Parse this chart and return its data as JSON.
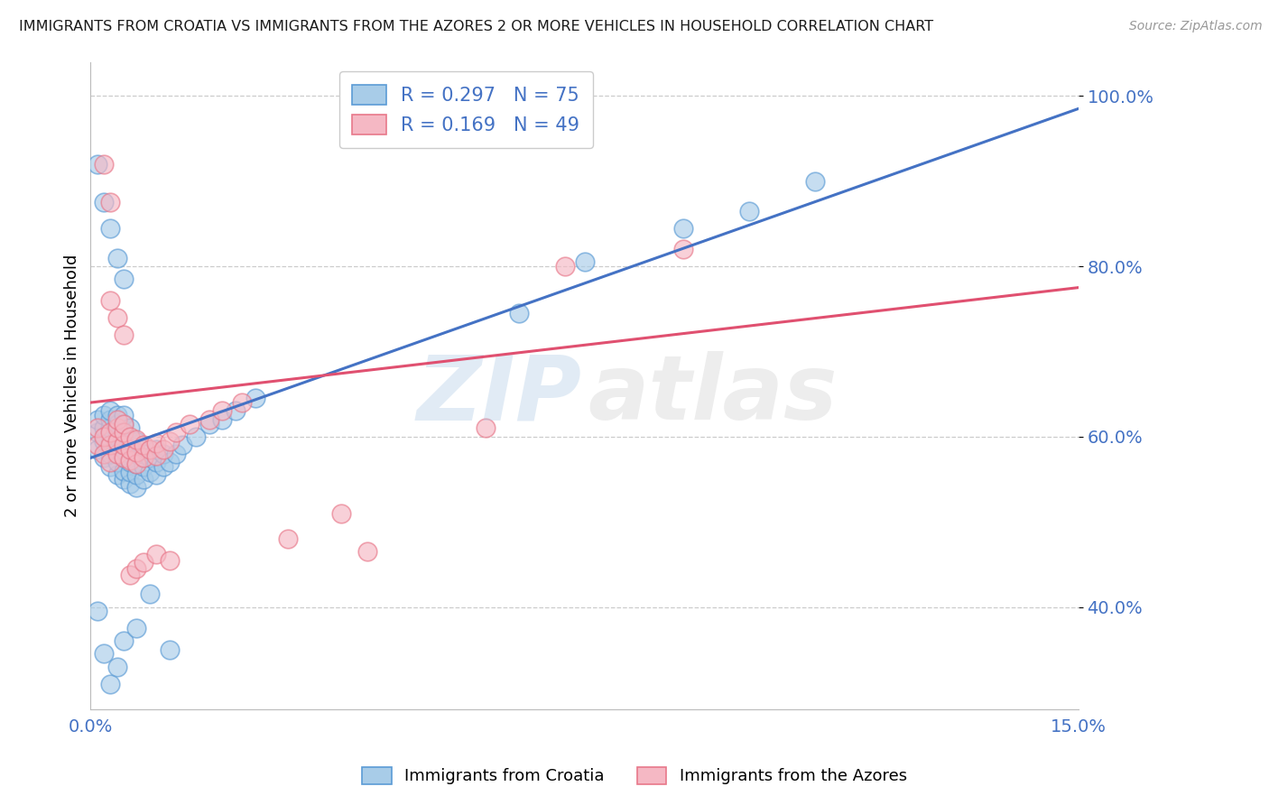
{
  "title": "IMMIGRANTS FROM CROATIA VS IMMIGRANTS FROM THE AZORES 2 OR MORE VEHICLES IN HOUSEHOLD CORRELATION CHART",
  "source": "Source: ZipAtlas.com",
  "ylabel": "2 or more Vehicles in Household",
  "xmin": 0.0,
  "xmax": 0.15,
  "ymin": 0.28,
  "ymax": 1.04,
  "yticks": [
    0.4,
    0.6,
    0.8,
    1.0
  ],
  "ytick_labels": [
    "40.0%",
    "60.0%",
    "80.0%",
    "100.0%"
  ],
  "xtick_labels": [
    "0.0%",
    "",
    "",
    "",
    "",
    "",
    "",
    "",
    "",
    "15.0%"
  ],
  "croatia_R": 0.297,
  "croatia_N": 75,
  "azores_R": 0.169,
  "azores_N": 49,
  "croatia_color": "#a8cce8",
  "azores_color": "#f5b8c4",
  "croatia_edge_color": "#5b9bd5",
  "azores_edge_color": "#e8788a",
  "croatia_line_color": "#4472c4",
  "azores_line_color": "#e05070",
  "legend_label_croatia": "Immigrants from Croatia",
  "legend_label_azores": "Immigrants from the Azores",
  "title_color": "#1a1a1a",
  "tick_color": "#4472c4",
  "grid_color": "#cccccc",
  "figwidth": 14.06,
  "figheight": 8.92,
  "croatia_trend_x0": 0.0,
  "croatia_trend_y0": 0.575,
  "croatia_trend_x1": 0.15,
  "croatia_trend_y1": 0.985,
  "azores_trend_x0": 0.0,
  "azores_trend_y0": 0.64,
  "azores_trend_x1": 0.15,
  "azores_trend_y1": 0.775,
  "croatia_x": [
    0.001,
    0.001,
    0.001,
    0.002,
    0.002,
    0.002,
    0.002,
    0.003,
    0.003,
    0.003,
    0.003,
    0.003,
    0.003,
    0.004,
    0.004,
    0.004,
    0.004,
    0.004,
    0.004,
    0.005,
    0.005,
    0.005,
    0.005,
    0.005,
    0.005,
    0.005,
    0.006,
    0.006,
    0.006,
    0.006,
    0.006,
    0.006,
    0.007,
    0.007,
    0.007,
    0.007,
    0.007,
    0.008,
    0.008,
    0.008,
    0.009,
    0.009,
    0.01,
    0.01,
    0.01,
    0.011,
    0.011,
    0.012,
    0.013,
    0.014,
    0.016,
    0.018,
    0.02,
    0.022,
    0.025,
    0.001,
    0.002,
    0.003,
    0.004,
    0.005,
    0.003,
    0.004,
    0.001,
    0.002,
    0.005,
    0.007,
    0.009,
    0.012,
    0.065,
    0.075,
    0.09,
    0.1,
    0.11
  ],
  "croatia_y": [
    0.585,
    0.605,
    0.62,
    0.575,
    0.595,
    0.61,
    0.625,
    0.565,
    0.58,
    0.595,
    0.61,
    0.62,
    0.63,
    0.555,
    0.57,
    0.585,
    0.6,
    0.615,
    0.625,
    0.55,
    0.56,
    0.575,
    0.59,
    0.605,
    0.615,
    0.625,
    0.545,
    0.558,
    0.57,
    0.585,
    0.595,
    0.61,
    0.54,
    0.555,
    0.568,
    0.58,
    0.595,
    0.55,
    0.565,
    0.58,
    0.558,
    0.575,
    0.555,
    0.57,
    0.585,
    0.565,
    0.58,
    0.57,
    0.58,
    0.59,
    0.6,
    0.615,
    0.62,
    0.63,
    0.645,
    0.92,
    0.875,
    0.845,
    0.81,
    0.785,
    0.31,
    0.33,
    0.395,
    0.345,
    0.36,
    0.375,
    0.415,
    0.35,
    0.745,
    0.805,
    0.845,
    0.865,
    0.9
  ],
  "azores_x": [
    0.001,
    0.001,
    0.002,
    0.002,
    0.003,
    0.003,
    0.003,
    0.004,
    0.004,
    0.004,
    0.004,
    0.005,
    0.005,
    0.005,
    0.005,
    0.006,
    0.006,
    0.006,
    0.007,
    0.007,
    0.007,
    0.008,
    0.008,
    0.009,
    0.01,
    0.01,
    0.011,
    0.012,
    0.013,
    0.015,
    0.018,
    0.02,
    0.023,
    0.003,
    0.004,
    0.005,
    0.002,
    0.003,
    0.006,
    0.007,
    0.008,
    0.01,
    0.012,
    0.03,
    0.038,
    0.042,
    0.06,
    0.072,
    0.09
  ],
  "azores_y": [
    0.59,
    0.61,
    0.58,
    0.6,
    0.57,
    0.59,
    0.605,
    0.58,
    0.595,
    0.61,
    0.62,
    0.575,
    0.59,
    0.605,
    0.615,
    0.572,
    0.585,
    0.6,
    0.568,
    0.582,
    0.597,
    0.575,
    0.59,
    0.585,
    0.578,
    0.592,
    0.585,
    0.595,
    0.605,
    0.615,
    0.62,
    0.63,
    0.64,
    0.76,
    0.74,
    0.72,
    0.92,
    0.875,
    0.438,
    0.445,
    0.452,
    0.462,
    0.455,
    0.48,
    0.51,
    0.465,
    0.61,
    0.8,
    0.82
  ]
}
